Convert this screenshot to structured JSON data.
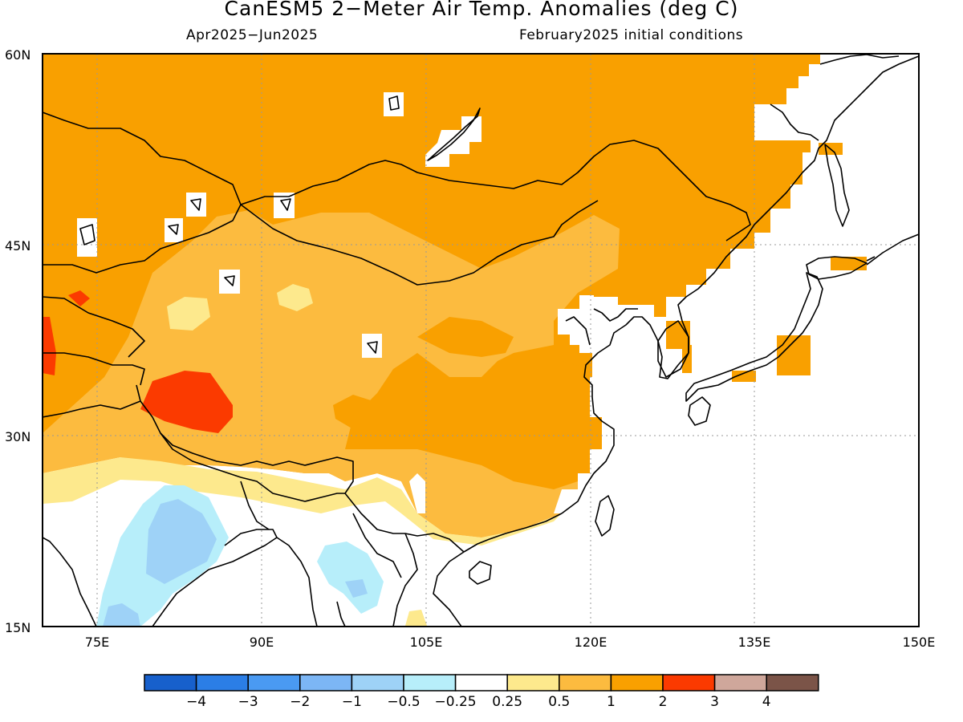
{
  "title": "CanESM5 2−Meter Air Temp. Anomalies (deg C)",
  "subtitle_left": "Apr2025−Jun2025",
  "subtitle_right": "February2025 initial conditions",
  "map": {
    "projection": "latitude-longitude",
    "lon_range": [
      70,
      150
    ],
    "lat_range": [
      15,
      60
    ],
    "lat_ticks": [
      {
        "value": 60,
        "label": "60N"
      },
      {
        "value": 45,
        "label": "45N"
      },
      {
        "value": 30,
        "label": "30N"
      },
      {
        "value": 15,
        "label": "15N"
      }
    ],
    "lon_ticks": [
      {
        "value": 75,
        "label": "75E"
      },
      {
        "value": 90,
        "label": "90E"
      },
      {
        "value": 105,
        "label": "105E"
      },
      {
        "value": 120,
        "label": "120E"
      },
      {
        "value": 135,
        "label": "135E"
      },
      {
        "value": 150,
        "label": "150E"
      }
    ],
    "gridlines": "dotted",
    "ocean_fill": "#ffffff",
    "coastline_color": "#000000"
  },
  "colorbar": {
    "labels": [
      "−4",
      "−3",
      "−2",
      "−1",
      "−0.5",
      "−0.25",
      "0.25",
      "0.5",
      "1",
      "2",
      "3",
      "4"
    ],
    "colors": [
      "#1760cc",
      "#2b7ee6",
      "#4a9af2",
      "#7cb6f5",
      "#9ed2f7",
      "#b7eefa",
      "#ffffff",
      "#fde98d",
      "#fcbb3f",
      "#f9a000",
      "#fb3a00",
      "#cfa79b",
      "#7b5448"
    ]
  },
  "anomaly_regions": {
    "colors": {
      "warm_2": "#f9a000",
      "warm_1": "#fcbb3f",
      "warm_05": "#fde98d",
      "hot_3": "#fb3a00",
      "cool_05": "#b7eefa",
      "cool_1": "#9ed2f7"
    }
  }
}
